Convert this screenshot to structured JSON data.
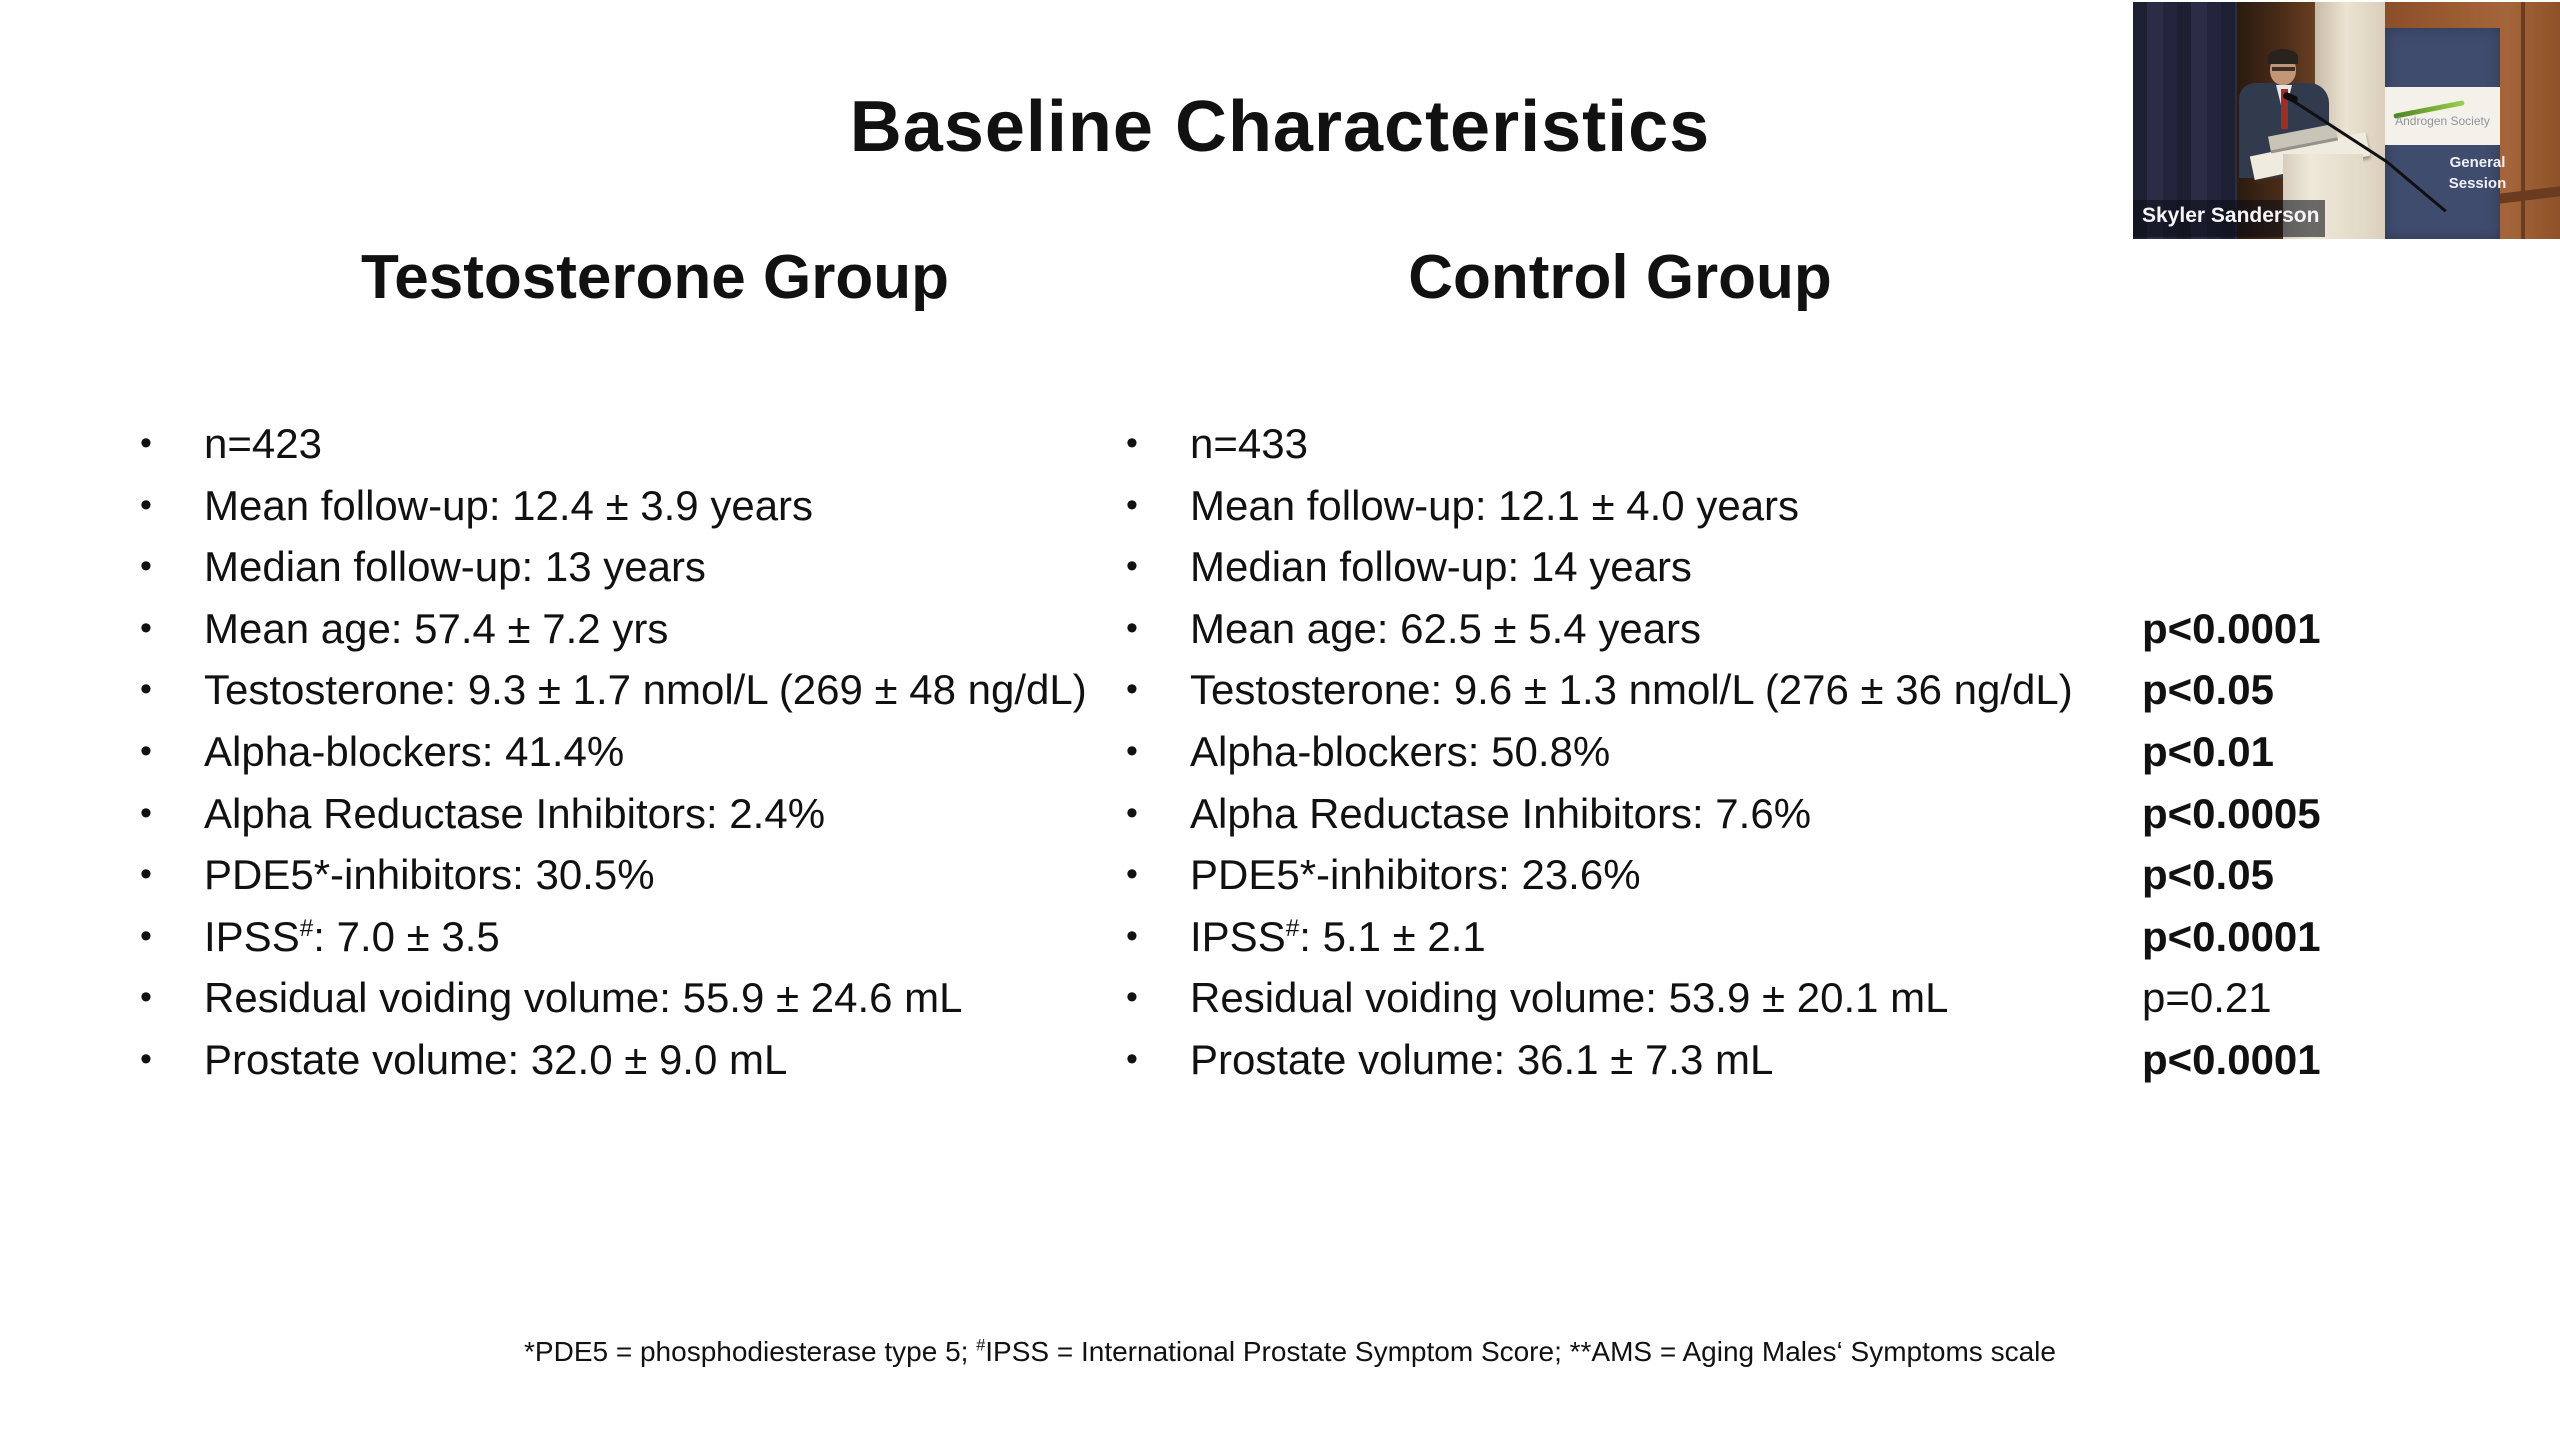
{
  "slide": {
    "title": "Baseline Characteristics",
    "footnote_segments": [
      "*PDE5 = phosphodiesterase type 5; ",
      {
        "sup": "#"
      },
      "IPSS = International Prostate Symptom Score; **AMS = Aging Males‘ Symptoms scale"
    ]
  },
  "icons": {
    "bullet": "•"
  },
  "colors": {
    "slide_text": "#111111",
    "banner_navy": "#404c6e",
    "logo_green": "#82b536",
    "curtain_navy": "#23253c",
    "wood_brown": "#9c5c32"
  },
  "columns": [
    {
      "heading": "Testosterone Group",
      "bullets": [
        [
          "n=423"
        ],
        [
          "Mean follow-up: 12.4 ± 3.9 years"
        ],
        [
          "Median follow-up: 13 years"
        ],
        [
          "Mean age: 57.4 ± 7.2 yrs"
        ],
        [
          "Testosterone: 9.3 ± 1.7 nmol/L (269 ± 48 ng/dL)"
        ],
        [
          "Alpha-blockers: 41.4%"
        ],
        [
          "Alpha Reductase Inhibitors: 2.4%"
        ],
        [
          "PDE5*-inhibitors: 30.5%"
        ],
        [
          "IPSS",
          {
            "sup": "#"
          },
          ": 7.0 ± 3.5"
        ],
        [
          "Residual voiding volume: 55.9 ± 24.6 mL"
        ],
        [
          "Prostate volume: 32.0 ± 9.0 mL"
        ]
      ]
    },
    {
      "heading": "Control Group",
      "bullets": [
        [
          "n=433"
        ],
        [
          "Mean follow-up: 12.1 ± 4.0 years"
        ],
        [
          "Median follow-up: 14 years"
        ],
        [
          "Mean age: 62.5 ± 5.4 years"
        ],
        [
          "Testosterone: 9.6 ± 1.3 nmol/L (276 ± 36 ng/dL)"
        ],
        [
          "Alpha-blockers: 50.8%"
        ],
        [
          "Alpha Reductase Inhibitors: 7.6%"
        ],
        [
          "PDE5*-inhibitors: 23.6%"
        ],
        [
          "IPSS",
          {
            "sup": "#"
          },
          ": 5.1 ± 2.1"
        ],
        [
          "Residual voiding volume: 53.9 ± 20.1 mL"
        ],
        [
          "Prostate volume: 36.1 ± 7.3 mL"
        ]
      ]
    }
  ],
  "pvalues": [
    null,
    null,
    null,
    {
      "text": "p<0.0001",
      "bold": true
    },
    {
      "text": "p<0.05",
      "bold": true
    },
    {
      "text": "p<0.01",
      "bold": true
    },
    {
      "text": "p<0.0005",
      "bold": true
    },
    {
      "text": "p<0.05",
      "bold": true
    },
    {
      "text": "p<0.0001",
      "bold": true
    },
    {
      "text": "p=0.21",
      "bold": false
    },
    {
      "text": "p<0.0001",
      "bold": true
    }
  ],
  "video": {
    "speaker_name": "Skyler Sanderson",
    "banner": {
      "org": "Androgen Society",
      "session": "General Session"
    }
  }
}
